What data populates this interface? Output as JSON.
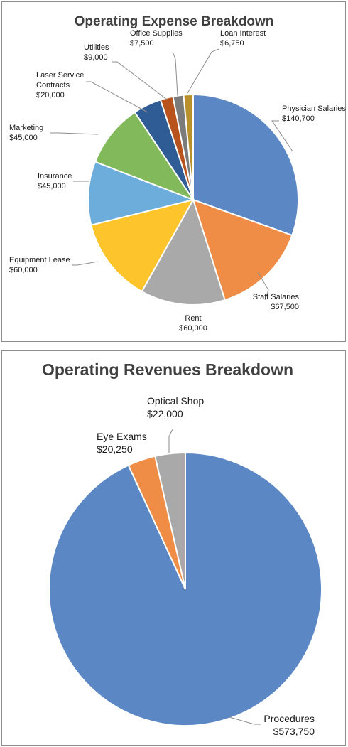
{
  "chart_data": [
    {
      "type": "pie",
      "title": "Operating Expense Breakdown",
      "start_angle_deg": 0,
      "direction": "clockwise",
      "slices": [
        {
          "label": [
            "Physician Salaries"
          ],
          "value_label": "$140,700",
          "value": 140700,
          "color": "#5b87c5"
        },
        {
          "label": [
            "Staff Salaries"
          ],
          "value_label": "$67,500",
          "value": 67500,
          "color": "#ef8c45"
        },
        {
          "label": [
            "Rent"
          ],
          "value_label": "$60,000",
          "value": 60000,
          "color": "#a9a9a9"
        },
        {
          "label": [
            "Equipment Lease"
          ],
          "value_label": "$60,000",
          "value": 60000,
          "color": "#fdc42c"
        },
        {
          "label": [
            "Insurance"
          ],
          "value_label": "$45,000",
          "value": 45000,
          "color": "#6caddc"
        },
        {
          "label": [
            "Marketing"
          ],
          "value_label": "$45,000",
          "value": 45000,
          "color": "#82b95a"
        },
        {
          "label": [
            "Laser Service",
            "Contracts"
          ],
          "value_label": "$20,000",
          "value": 20000,
          "color": "#2f5c95"
        },
        {
          "label": [
            "Utilities"
          ],
          "value_label": "$9,000",
          "value": 9000,
          "color": "#b8531e"
        },
        {
          "label": [
            "Office Supplies"
          ],
          "value_label": "$7,500",
          "value": 7500,
          "color": "#7b7b7b"
        },
        {
          "label": [
            "Loan Interest"
          ],
          "value_label": "$6,750",
          "value": 6750,
          "color": "#b8902c"
        }
      ]
    },
    {
      "type": "pie",
      "title": "Operating Revenues Breakdown",
      "start_angle_deg": 0,
      "direction": "clockwise",
      "slices": [
        {
          "label": [
            "Procedures"
          ],
          "value_label": "$573,750",
          "value": 573750,
          "color": "#5b87c5"
        },
        {
          "label": [
            "Eye Exams"
          ],
          "value_label": "$20,250",
          "value": 20250,
          "color": "#ef8c45"
        },
        {
          "label": [
            "Optical Shop"
          ],
          "value_label": "$22,000",
          "value": 22000,
          "color": "#a9a9a9"
        }
      ]
    }
  ]
}
